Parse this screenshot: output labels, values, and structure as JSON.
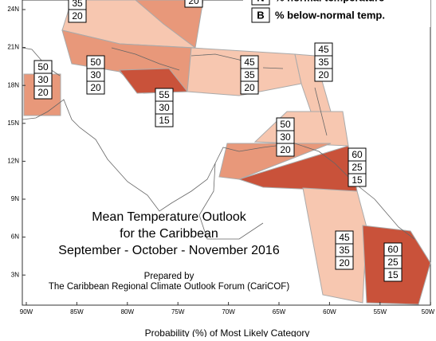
{
  "map": {
    "lat_labels": [
      "24N",
      "21N",
      "18N",
      "15N",
      "12N",
      "9N",
      "6N",
      "3N"
    ],
    "lon_labels": [
      "90W",
      "85W",
      "80W",
      "75W",
      "70W",
      "65W",
      "60W",
      "55W",
      "50W"
    ],
    "legend": [
      {
        "key": "N",
        "text": "% normal temperature"
      },
      {
        "key": "B",
        "text": "% below-normal temp."
      }
    ],
    "title": [
      "Mean Temperature Outlook",
      "for the Caribbean",
      "September - October - November 2016"
    ],
    "credit": [
      "Prepared by",
      "The Caribbean Regional Climate Outlook Forum (CariCOF)"
    ],
    "caption": "Probability (%) of Most Likely Category",
    "regions": [
      [
        35,
        20
      ],
      [
        20
      ],
      [
        50,
        30,
        20
      ],
      [
        50,
        30,
        20
      ],
      [
        55,
        30,
        15
      ],
      [
        45,
        35,
        20
      ],
      [
        45,
        35,
        20
      ],
      [
        50,
        30,
        20
      ],
      [
        60,
        25,
        15
      ],
      [
        45,
        35,
        20
      ],
      [
        60,
        25,
        15
      ]
    ]
  }
}
